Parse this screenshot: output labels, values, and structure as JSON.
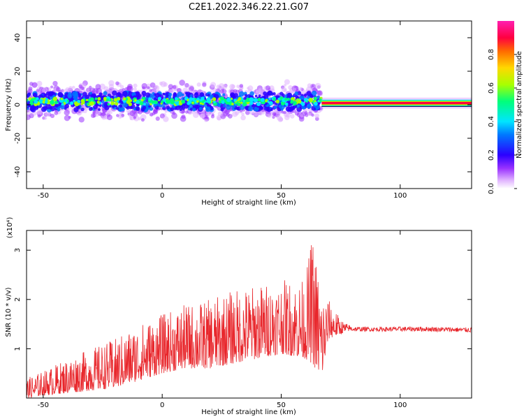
{
  "title": "C2E1.2022.346.22.21.G07",
  "colors": {
    "snr_line": "#e8262b",
    "colormap": [
      "#ffffff",
      "#e0b3ff",
      "#9a33ff",
      "#2b00ff",
      "#0077ff",
      "#00e5ff",
      "#00ff7a",
      "#a8ff00",
      "#ffd800",
      "#ff6a00",
      "#ff0040",
      "#ff1fb0"
    ]
  },
  "chart_data": [
    {
      "type": "heatmap",
      "xlabel": "Height of straight line (km)",
      "ylabel": "Frequency (Hz)",
      "xlim": [
        -57,
        130
      ],
      "ylim": [
        -50,
        50
      ],
      "x_ticks": [
        -50,
        0,
        50,
        100
      ],
      "y_ticks": [
        -40,
        -20,
        0,
        20,
        40
      ],
      "colorbar": {
        "label": "Normalized spectral amplitude",
        "range": [
          0,
          1
        ],
        "ticks": [
          0.0,
          0.2,
          0.4,
          0.6,
          0.8
        ]
      },
      "description_points": {
        "noisy_band": {
          "x_range": [
            -57,
            67
          ],
          "center_freq_hz": 2,
          "half_width_hz": 10
        },
        "narrow_band": {
          "x_range": [
            67,
            130
          ],
          "center_freq_hz": 1,
          "half_width_hz": 2
        }
      }
    },
    {
      "type": "line",
      "xlabel": "Height of straight line (km)",
      "ylabel": "SNR (10 * v/v)",
      "y_multiplier_label": "(x10⁴)",
      "xlim": [
        -57,
        130
      ],
      "ylim": [
        0,
        3.4
      ],
      "x_ticks": [
        -50,
        0,
        50,
        100
      ],
      "y_ticks": [
        1,
        2,
        3
      ],
      "series": [
        {
          "x": [
            -57,
            -50,
            -40,
            -30,
            -20,
            -10,
            0,
            10,
            20,
            30,
            40,
            50,
            60,
            63,
            67,
            70,
            75,
            78,
            80,
            90,
            100,
            110,
            120,
            130
          ],
          "y_low": [
            0.0,
            0.05,
            0.1,
            0.15,
            0.2,
            0.35,
            0.5,
            0.6,
            0.6,
            0.7,
            0.8,
            0.9,
            0.8,
            0.7,
            0.4,
            1.2,
            1.3,
            1.35,
            1.35,
            1.35,
            1.35,
            1.35,
            1.34,
            1.33
          ],
          "y_high": [
            0.4,
            0.55,
            0.8,
            1.0,
            1.2,
            1.5,
            1.7,
            1.9,
            2.0,
            2.2,
            2.3,
            2.4,
            2.4,
            3.35,
            2.2,
            2.0,
            1.6,
            1.5,
            1.45,
            1.44,
            1.45,
            1.45,
            1.44,
            1.43
          ]
        }
      ]
    }
  ]
}
